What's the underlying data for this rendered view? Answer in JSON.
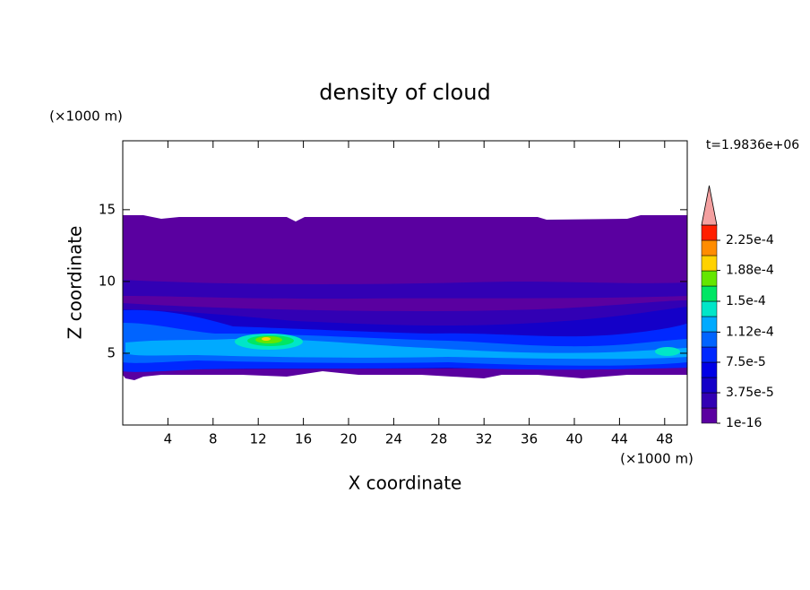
{
  "chart_data": {
    "type": "contour",
    "title": "density of cloud",
    "x_label": "X coordinate",
    "y_label": "Z coordinate",
    "x_unit": "(×1000 m)",
    "y_unit": "(×1000 m)",
    "time_label": "t=1.9836e+06",
    "xlim": [
      0,
      50
    ],
    "xticks": [
      4,
      8,
      12,
      16,
      20,
      24,
      28,
      32,
      36,
      40,
      44,
      48
    ],
    "ylim": [
      0,
      19.8
    ],
    "yticks": [
      5,
      10,
      15
    ],
    "colorbar": {
      "clim": [
        0,
        0.00024375
      ],
      "colors": [
        "#5a00a0",
        "#3200b4",
        "#1400c8",
        "#0000e6",
        "#0028ff",
        "#0064ff",
        "#00aaff",
        "#00e6c8",
        "#00e664",
        "#64e600",
        "#ffd200",
        "#ff8c00",
        "#ff1e00"
      ],
      "extend_color": "#f4a0a0",
      "ticks": [
        {
          "value": 1e-16,
          "label": "1e-16"
        },
        {
          "value": 3.75e-05,
          "label": "3.75e-5"
        },
        {
          "value": 7.5e-05,
          "label": "7.5e-5"
        },
        {
          "value": 0.000112,
          "label": "1.12e-4"
        },
        {
          "value": 0.00015,
          "label": "1.5e-4"
        },
        {
          "value": 0.000188,
          "label": "1.88e-4"
        },
        {
          "value": 0.000225,
          "label": "2.25e-4"
        }
      ]
    }
  }
}
